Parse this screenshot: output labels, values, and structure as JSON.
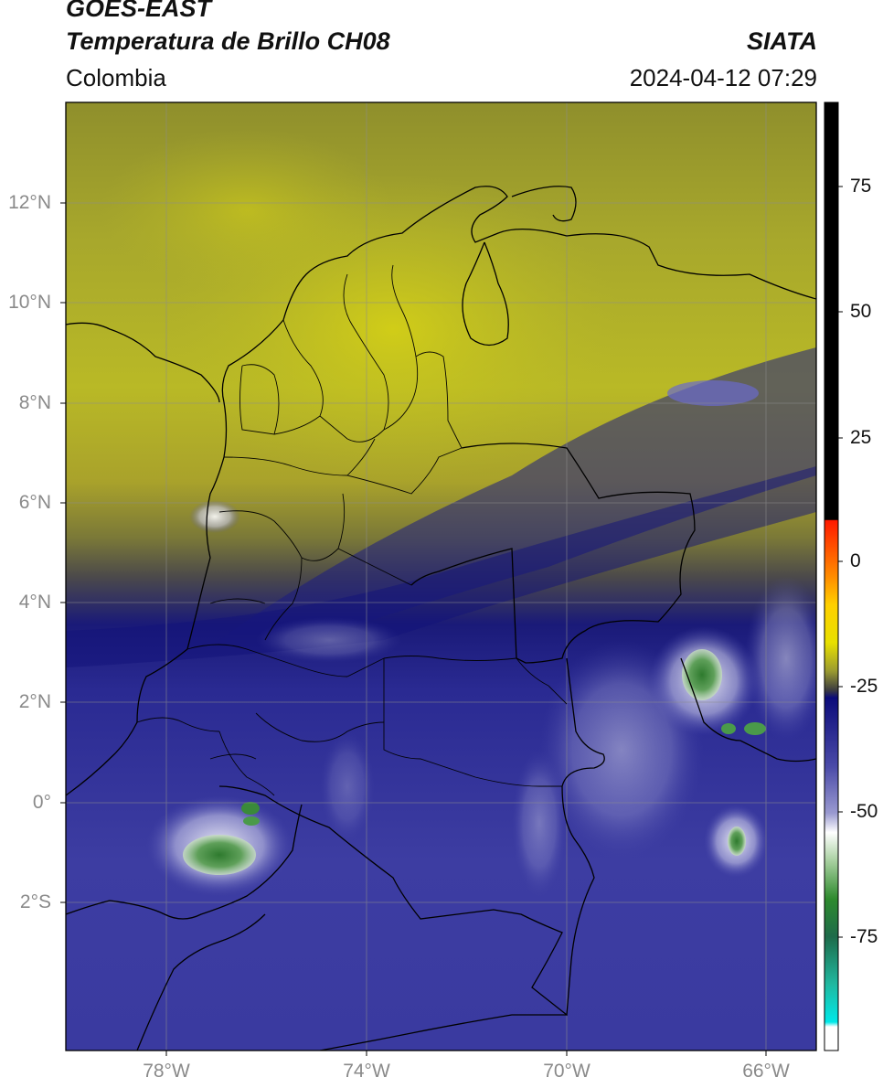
{
  "header": {
    "title_line1": "GOES-EAST",
    "title_line2": "Temperatura de Brillo CH08",
    "organization": "SIATA",
    "region": "Colombia",
    "timestamp": "2024-04-12 07:29"
  },
  "map": {
    "lat_labels": [
      "12°N",
      "10°N",
      "8°N",
      "6°N",
      "4°N",
      "2°N",
      "0°",
      "2°S"
    ],
    "lon_labels": [
      "78°W",
      "74°W",
      "70°W",
      "66°W"
    ],
    "extent": {
      "lon_min": -80,
      "lon_max": -65,
      "lat_min": -4.5,
      "lat_max": 14
    }
  },
  "colorbar": {
    "tick_labels": [
      "75",
      "50",
      "25",
      "0",
      "-25",
      "-50",
      "-75"
    ],
    "colors": {
      "warm_black": "#000000",
      "red": "#ff1a00",
      "orange": "#ff8c00",
      "yellow": "#e8e000",
      "olive": "#9a9a30",
      "dark_gray": "#3c3c40",
      "navy": "#0b0b7a",
      "blue": "#4a4aa8",
      "white": "#ffffff",
      "green": "#2e8b2e",
      "teal": "#20b8a0",
      "cyan": "#00e8e8"
    }
  }
}
